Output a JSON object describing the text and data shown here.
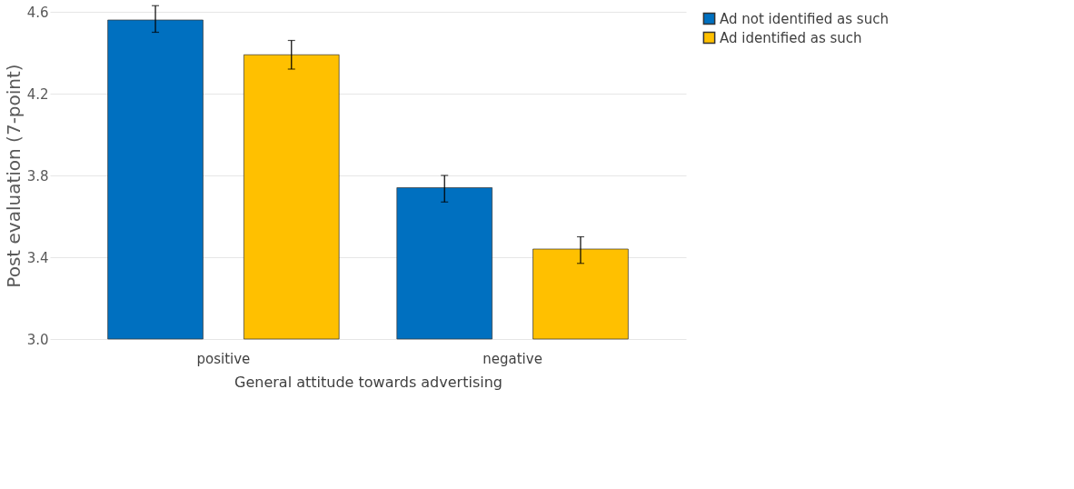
{
  "chart_data": {
    "type": "bar",
    "xlabel": "General attitude towards advertising",
    "ylabel": "Post evaluation (7-point)",
    "categories": [
      "positive",
      "negative"
    ],
    "series": [
      {
        "name": "Ad not identified as such",
        "color": "#0070c0",
        "values": [
          4.56,
          3.74
        ],
        "errors": [
          [
            4.5,
            4.63
          ],
          [
            3.67,
            3.8
          ]
        ]
      },
      {
        "name": "Ad identified as such",
        "color": "#ffc000",
        "values": [
          4.39,
          3.44
        ],
        "errors": [
          [
            4.32,
            4.46
          ],
          [
            3.37,
            3.5
          ]
        ]
      }
    ],
    "ylim": [
      3.0,
      4.6
    ],
    "yticks": [
      {
        "value": 3.0,
        "label": "3.0"
      },
      {
        "value": 3.4,
        "label": "3.4"
      },
      {
        "value": 3.8,
        "label": "3.8"
      },
      {
        "value": 4.2,
        "label": "4.2"
      },
      {
        "value": 4.6,
        "label": "4.6"
      }
    ],
    "grid": "y",
    "legend": "right"
  }
}
